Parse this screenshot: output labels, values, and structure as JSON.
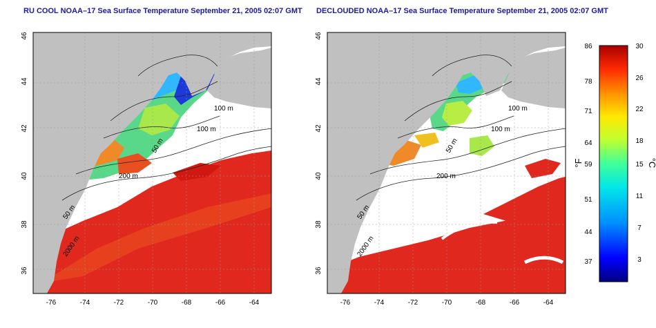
{
  "panels": [
    {
      "title": "RU COOL NOAA–17 Sea Surface Temperature September 21, 2005 02:07 GMT"
    },
    {
      "title": "DECLOUDED NOAA–17 Sea Surface Temperature September 21, 2005 02:07 GMT"
    }
  ],
  "axes": {
    "lon_ticks": [
      "-76",
      "-74",
      "-72",
      "-70",
      "-68",
      "-66",
      "-64"
    ],
    "lat_ticks": [
      "46",
      "44",
      "42",
      "40",
      "38",
      "36"
    ]
  },
  "contours": {
    "c100": "100 m",
    "c50": "50 m",
    "c200": "200 m",
    "c2000": "2000 m"
  },
  "colorbar": {
    "f_ticks": [
      "86",
      "78",
      "71",
      "64",
      "59",
      "51",
      "44",
      "37"
    ],
    "c_ticks": [
      "30",
      "26",
      "22",
      "18",
      "15",
      "11",
      "7",
      "3"
    ],
    "f_label": "°F",
    "c_label": "°C",
    "colors": [
      "#000080",
      "#0000ff",
      "#0080ff",
      "#00e0ff",
      "#40ffb0",
      "#b0ff40",
      "#ffff00",
      "#ffa000",
      "#ff3000",
      "#b00000"
    ]
  },
  "colors": {
    "land": "#c0c0c0",
    "warm": "#e0281e",
    "cold": "#2a3ee0",
    "mid": "#60d880",
    "orange": "#f08a28"
  }
}
